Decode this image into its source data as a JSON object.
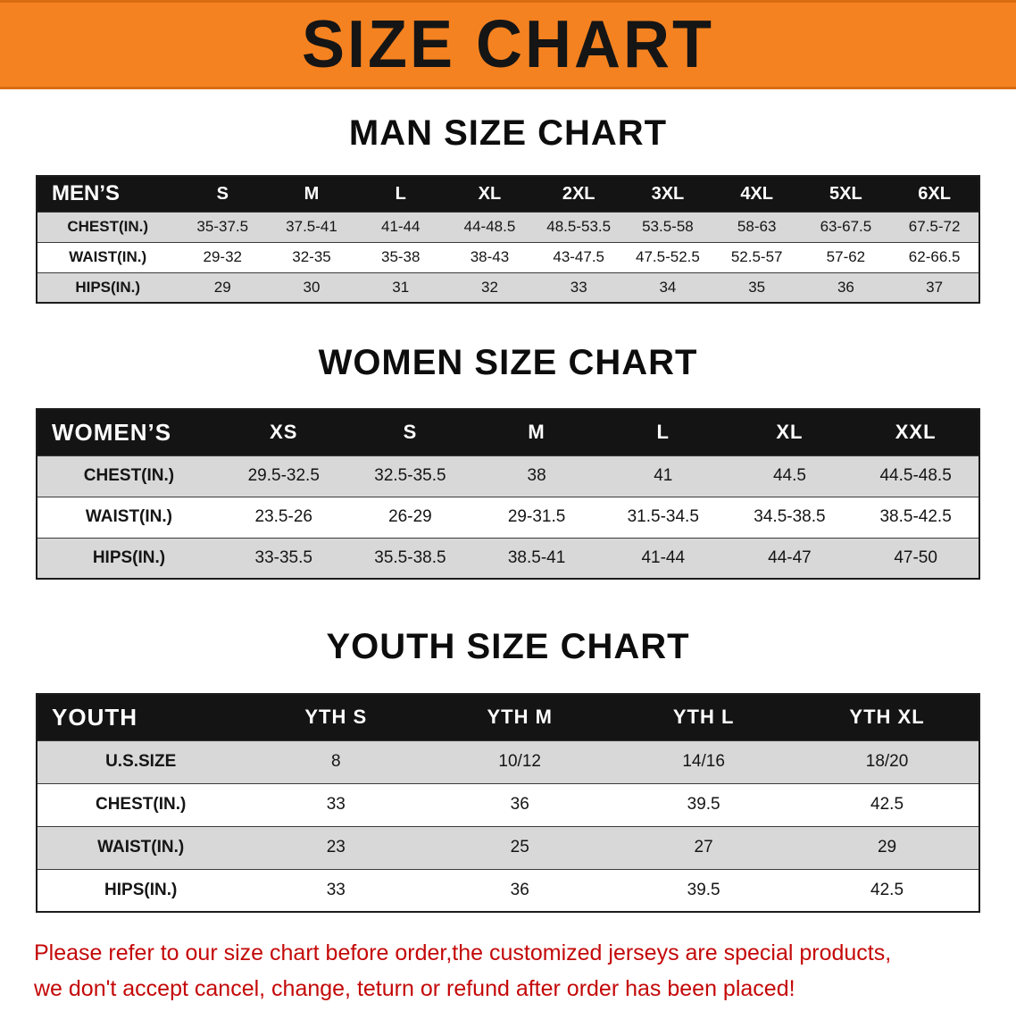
{
  "page": {
    "title": "SIZE CHART"
  },
  "colors": {
    "banner_bg": "#f58220",
    "banner_edge": "#d96c12",
    "table_header_bg": "#141414",
    "row_alt_bg": "#d8d8d8",
    "note_text": "#c40808"
  },
  "sections": [
    {
      "heading": "MAN SIZE CHART",
      "table": {
        "header": [
          "MEN’S",
          "S",
          "M",
          "L",
          "XL",
          "2XL",
          "3XL",
          "4XL",
          "5XL",
          "6XL"
        ],
        "rows": [
          [
            "CHEST(IN.)",
            "35-37.5",
            "37.5-41",
            "41-44",
            "44-48.5",
            "48.5-53.5",
            "53.5-58",
            "58-63",
            "63-67.5",
            "67.5-72"
          ],
          [
            "WAIST(IN.)",
            "29-32",
            "32-35",
            "35-38",
            "38-43",
            "43-47.5",
            "47.5-52.5",
            "52.5-57",
            "57-62",
            "62-66.5"
          ],
          [
            "HIPS(IN.)",
            "29",
            "30",
            "31",
            "32",
            "33",
            "34",
            "35",
            "36",
            "37"
          ]
        ]
      }
    },
    {
      "heading": "WOMEN SIZE CHART",
      "table": {
        "header": [
          "WOMEN’S",
          "XS",
          "S",
          "M",
          "L",
          "XL",
          "XXL"
        ],
        "rows": [
          [
            "CHEST(IN.)",
            "29.5-32.5",
            "32.5-35.5",
            "38",
            "41",
            "44.5",
            "44.5-48.5"
          ],
          [
            "WAIST(IN.)",
            "23.5-26",
            "26-29",
            "29-31.5",
            "31.5-34.5",
            "34.5-38.5",
            "38.5-42.5"
          ],
          [
            "HIPS(IN.)",
            "33-35.5",
            "35.5-38.5",
            "38.5-41",
            "41-44",
            "44-47",
            "47-50"
          ]
        ]
      }
    },
    {
      "heading": "YOUTH SIZE CHART",
      "table": {
        "header": [
          "YOUTH",
          "YTH S",
          "YTH M",
          "YTH L",
          "YTH XL"
        ],
        "rows": [
          [
            "U.S.SIZE",
            "8",
            "10/12",
            "14/16",
            "18/20"
          ],
          [
            "CHEST(IN.)",
            "33",
            "36",
            "39.5",
            "42.5"
          ],
          [
            "WAIST(IN.)",
            "23",
            "25",
            "27",
            "29"
          ],
          [
            "HIPS(IN.)",
            "33",
            "36",
            "39.5",
            "42.5"
          ]
        ]
      }
    }
  ],
  "note": {
    "line1": "Please refer to our size chart before order,the customized jerseys are special products,",
    "line2": "we don't accept cancel, change, teturn or refund after order has been placed!"
  }
}
